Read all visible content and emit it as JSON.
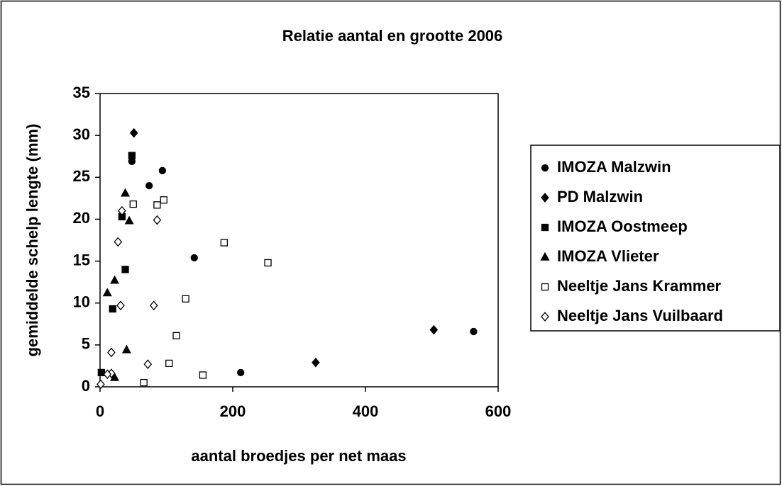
{
  "chart_data": {
    "type": "scatter",
    "title": "Relatie aantal en grootte 2006",
    "x_label": "aantal broedjes per net maas",
    "y_label": "gemiddelde schelp lengte (mm)",
    "xlim": [
      0,
      600
    ],
    "xticks": [
      0,
      200,
      400,
      600
    ],
    "ylim": [
      0,
      35
    ],
    "yticks": [
      0,
      5,
      10,
      15,
      20,
      25,
      30,
      35
    ],
    "grid": false,
    "legend": "right",
    "series": [
      {
        "name": "IMOZA Malzwin",
        "color": "#000000",
        "marker": "circle",
        "filled": true,
        "x": [
          48,
          94,
          74,
          142,
          212,
          563
        ],
        "values": [
          26.9,
          25.8,
          24.0,
          15.4,
          1.7,
          6.6
        ]
      },
      {
        "name": "PD Malzwin",
        "color": "#000000",
        "marker": "diamond",
        "filled": true,
        "x": [
          51,
          325,
          503
        ],
        "values": [
          30.3,
          2.9,
          6.8
        ]
      },
      {
        "name": "IMOZA Oostmeep",
        "color": "#000000",
        "marker": "square",
        "filled": true,
        "x": [
          48,
          33,
          38,
          19,
          2
        ],
        "values": [
          27.6,
          20.3,
          14.0,
          9.3,
          1.7
        ]
      },
      {
        "name": "IMOZA Vlieter",
        "color": "#000000",
        "marker": "triangle",
        "filled": true,
        "x": [
          38,
          44,
          22,
          11,
          40,
          22
        ],
        "values": [
          23.1,
          19.8,
          12.7,
          11.2,
          4.4,
          1.1
        ]
      },
      {
        "name": "Neeltje Jans Krammer",
        "color": "#000000",
        "marker": "square",
        "filled": false,
        "x": [
          50,
          86,
          96,
          187,
          253,
          129,
          115,
          104,
          155,
          66
        ],
        "values": [
          21.8,
          21.7,
          22.3,
          17.2,
          14.8,
          10.5,
          6.1,
          2.8,
          1.4,
          0.5
        ]
      },
      {
        "name": "Neeltje Jans Vuilbaard",
        "color": "#000000",
        "marker": "diamond",
        "filled": false,
        "x": [
          33,
          27,
          86,
          31,
          81,
          17,
          72,
          17,
          11,
          1
        ],
        "values": [
          21.0,
          17.3,
          19.9,
          9.7,
          9.7,
          4.1,
          2.7,
          1.6,
          1.5,
          0.3
        ]
      }
    ]
  }
}
